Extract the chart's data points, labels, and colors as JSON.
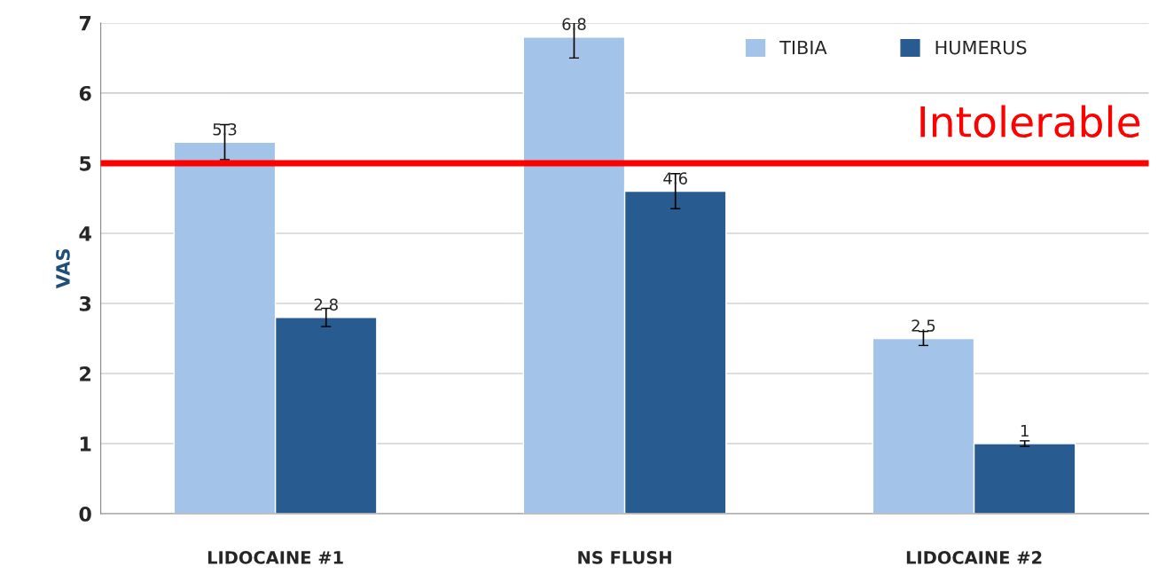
{
  "chart_data": {
    "type": "bar",
    "ylabel": "VAS",
    "categories": [
      "LIDOCAINE #1",
      "NS FLUSH",
      "LIDOCAINE #2"
    ],
    "series": [
      {
        "name": "TIBIA",
        "color": "#a3c4e8",
        "values": [
          5.3,
          6.8,
          2.5
        ],
        "errors": [
          0.25,
          [
            6.5,
            7.0
          ],
          0.1
        ]
      },
      {
        "name": "HUMERUS",
        "color": "#285b8f",
        "values": [
          2.8,
          4.6,
          1
        ],
        "errors": [
          0.13,
          0.25,
          0.04
        ]
      }
    ],
    "ylim": [
      0,
      7
    ],
    "yticks": [
      0,
      1,
      2,
      3,
      4,
      5,
      6,
      7
    ],
    "grid": "y",
    "legend": "top right",
    "data_labels": true,
    "ref_lines": [
      {
        "axis": "y",
        "value": 5,
        "label": "Intolerable",
        "color": "#ff0000"
      }
    ]
  }
}
